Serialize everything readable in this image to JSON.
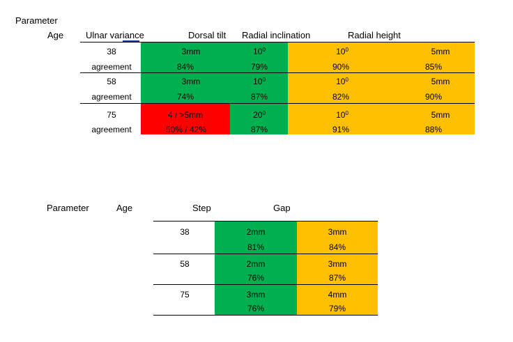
{
  "table1": {
    "header": {
      "parameter": "Parameter",
      "age": "Age",
      "ulnar_variance": "Ulnar variance",
      "dorsal_tilt": "Dorsal tilt",
      "radial_inclination": "Radial inclination",
      "radial_height": "Radial height"
    },
    "rows": [
      {
        "age": "38",
        "agreement_label": "agreement",
        "ulnar_val": "3mm",
        "ulnar_pct": "84%",
        "dorsal_val": "10",
        "dorsal_pct": "79%",
        "radial_inc_val": "10",
        "radial_inc_pct": "90%",
        "radial_height_val": "5mm",
        "radial_height_pct": "85%"
      },
      {
        "age": "58",
        "agreement_label": "agreement",
        "ulnar_val": "3mm",
        "ulnar_pct": "74%",
        "dorsal_val": "10",
        "dorsal_pct": "87%",
        "radial_inc_val": "10",
        "radial_inc_pct": "82%",
        "radial_height_val": "5mm",
        "radial_height_pct": "90%"
      },
      {
        "age": "75",
        "agreement_label": "agreement",
        "ulnar_val": "4 / >5mm",
        "ulnar_pct": "50% / 42%",
        "dorsal_val": "20",
        "dorsal_pct": "87%",
        "radial_inc_val": "10",
        "radial_inc_pct": "91%",
        "radial_height_val": "5mm",
        "radial_height_pct": "88%"
      }
    ],
    "degree_sup": "0"
  },
  "table2": {
    "header": {
      "parameter": "Parameter",
      "age": "Age",
      "step": "Step",
      "gap": "Gap"
    },
    "rows": [
      {
        "age": "38",
        "step_val": "2mm",
        "step_pct": "81%",
        "gap_val": "3mm",
        "gap_pct": "84%"
      },
      {
        "age": "58",
        "step_val": "2mm",
        "step_pct": "76%",
        "gap_val": "3mm",
        "gap_pct": "87%"
      },
      {
        "age": "75",
        "step_val": "3mm",
        "step_pct": "76%",
        "gap_val": "4mm",
        "gap_pct": "79%"
      }
    ]
  },
  "colors": {
    "green": "#00b050",
    "orange": "#ffc000",
    "red": "#ff0000"
  }
}
